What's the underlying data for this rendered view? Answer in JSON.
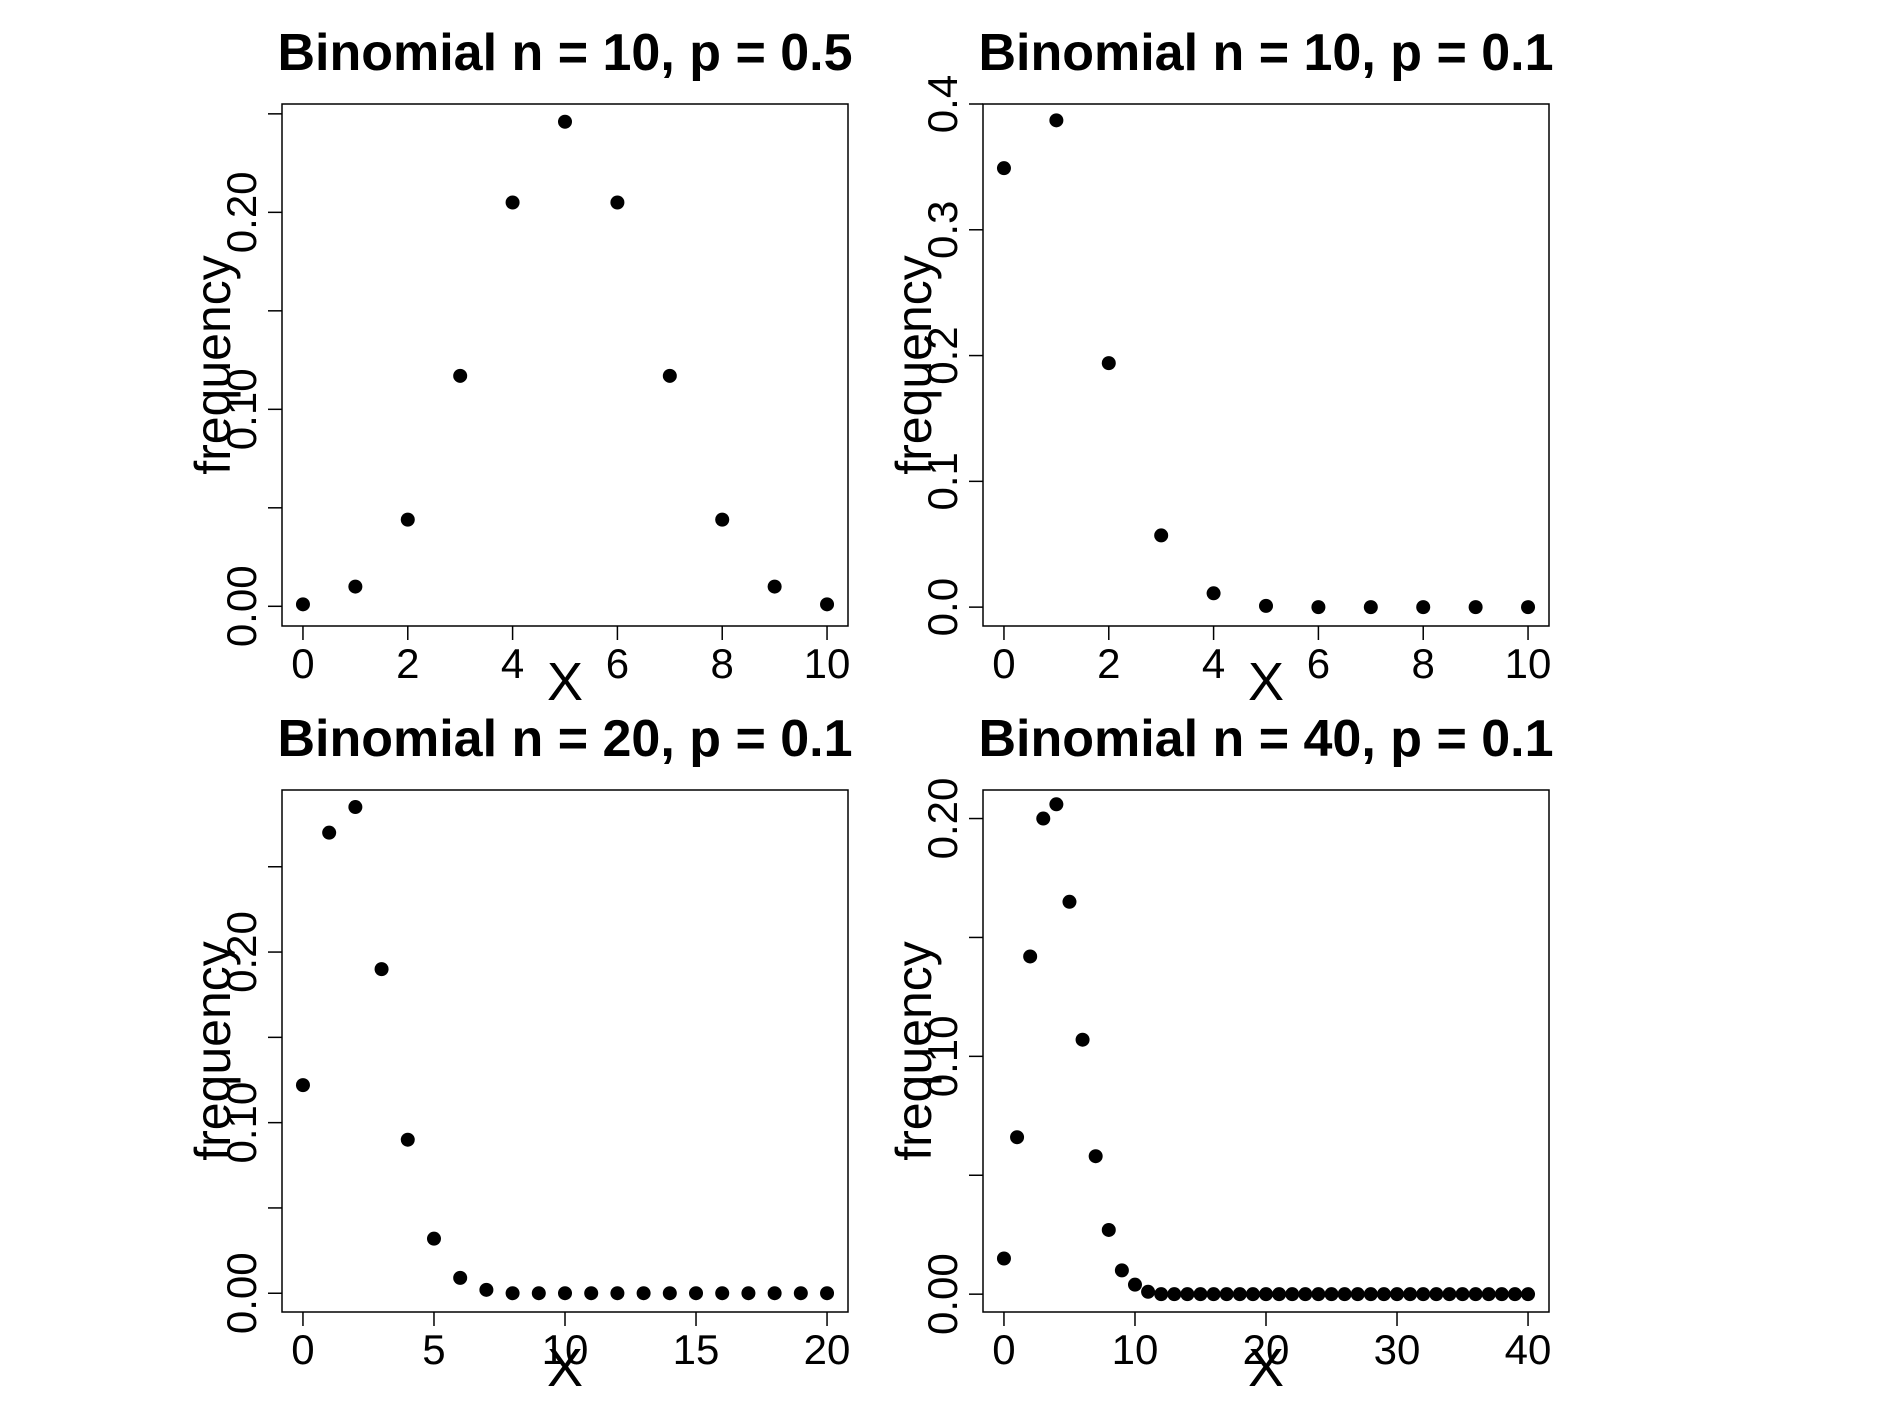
{
  "chart_data": [
    {
      "type": "scatter",
      "title": "Binomial n = 10, p = 0.5",
      "xlabel": "X",
      "ylabel": "frequency",
      "x": [
        0,
        1,
        2,
        3,
        4,
        5,
        6,
        7,
        8,
        9,
        10
      ],
      "y": [
        0.001,
        0.01,
        0.044,
        0.117,
        0.205,
        0.246,
        0.205,
        0.117,
        0.044,
        0.01,
        0.001
      ],
      "xlim": [
        -0.4,
        10.4
      ],
      "ylim": [
        -0.01,
        0.255
      ],
      "xticks": [
        0,
        2,
        4,
        6,
        8,
        10
      ],
      "xtick_labels": [
        "0",
        "2",
        "4",
        "6",
        "8",
        "10"
      ],
      "yticks": [
        0.0,
        0.05,
        0.1,
        0.15,
        0.2,
        0.25
      ],
      "ytick_labels": [
        "0.00",
        "",
        "0.10",
        "",
        "0.20",
        ""
      ],
      "grid": false
    },
    {
      "type": "scatter",
      "title": "Binomial n = 10, p = 0.1",
      "xlabel": "X",
      "ylabel": "frequency",
      "x": [
        0,
        1,
        2,
        3,
        4,
        5,
        6,
        7,
        8,
        9,
        10
      ],
      "y": [
        0.349,
        0.387,
        0.194,
        0.057,
        0.011,
        0.001,
        0.0,
        0.0,
        0.0,
        0.0,
        0.0
      ],
      "xlim": [
        -0.4,
        10.4
      ],
      "ylim": [
        -0.015,
        0.4
      ],
      "xticks": [
        0,
        2,
        4,
        6,
        8,
        10
      ],
      "xtick_labels": [
        "0",
        "2",
        "4",
        "6",
        "8",
        "10"
      ],
      "yticks": [
        0.0,
        0.1,
        0.2,
        0.3,
        0.4
      ],
      "ytick_labels": [
        "0.0",
        "0.1",
        "0.2",
        "0.3",
        "0.4"
      ],
      "grid": false
    },
    {
      "type": "scatter",
      "title": "Binomial n = 20, p = 0.1",
      "xlabel": "X",
      "ylabel": "frequency",
      "x": [
        0,
        1,
        2,
        3,
        4,
        5,
        6,
        7,
        8,
        9,
        10,
        11,
        12,
        13,
        14,
        15,
        16,
        17,
        18,
        19,
        20
      ],
      "y": [
        0.122,
        0.27,
        0.285,
        0.19,
        0.09,
        0.032,
        0.009,
        0.002,
        0.0,
        0.0,
        0.0,
        0.0,
        0.0,
        0.0,
        0.0,
        0.0,
        0.0,
        0.0,
        0.0,
        0.0,
        0.0
      ],
      "xlim": [
        -0.8,
        20.8
      ],
      "ylim": [
        -0.011,
        0.295
      ],
      "xticks": [
        0,
        5,
        10,
        15,
        20
      ],
      "xtick_labels": [
        "0",
        "5",
        "10",
        "15",
        "20"
      ],
      "yticks": [
        0.0,
        0.05,
        0.1,
        0.15,
        0.2,
        0.25
      ],
      "ytick_labels": [
        "0.00",
        "",
        "0.10",
        "",
        "0.20",
        ""
      ],
      "grid": false
    },
    {
      "type": "scatter",
      "title": "Binomial n = 40, p = 0.1",
      "xlabel": "X",
      "ylabel": "frequency",
      "x": [
        0,
        1,
        2,
        3,
        4,
        5,
        6,
        7,
        8,
        9,
        10,
        11,
        12,
        13,
        14,
        15,
        16,
        17,
        18,
        19,
        20,
        21,
        22,
        23,
        24,
        25,
        26,
        27,
        28,
        29,
        30,
        31,
        32,
        33,
        34,
        35,
        36,
        37,
        38,
        39,
        40
      ],
      "y": [
        0.015,
        0.066,
        0.142,
        0.2,
        0.206,
        0.165,
        0.107,
        0.058,
        0.027,
        0.01,
        0.004,
        0.001,
        0.0,
        0.0,
        0.0,
        0.0,
        0.0,
        0.0,
        0.0,
        0.0,
        0.0,
        0.0,
        0.0,
        0.0,
        0.0,
        0.0,
        0.0,
        0.0,
        0.0,
        0.0,
        0.0,
        0.0,
        0.0,
        0.0,
        0.0,
        0.0,
        0.0,
        0.0,
        0.0,
        0.0,
        0.0
      ],
      "xlim": [
        -1.6,
        41.6
      ],
      "ylim": [
        -0.0075,
        0.212
      ],
      "xticks": [
        0,
        10,
        20,
        30,
        40
      ],
      "xtick_labels": [
        "0",
        "10",
        "20",
        "30",
        "40"
      ],
      "yticks": [
        0.0,
        0.05,
        0.1,
        0.15,
        0.2
      ],
      "ytick_labels": [
        "0.00",
        "",
        "0.10",
        "",
        "0.20"
      ],
      "grid": false
    }
  ]
}
